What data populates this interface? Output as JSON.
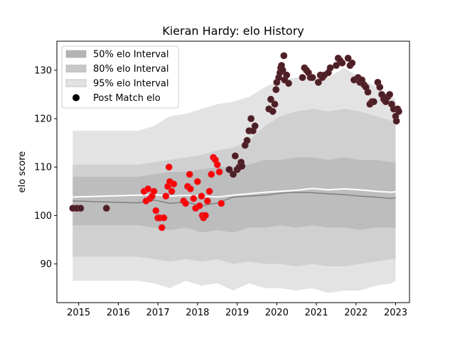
{
  "chart_data": {
    "type": "scatter",
    "title": "Kieran Hardy: elo History",
    "xlabel": "",
    "ylabel": "elo score",
    "xlim": [
      2014.45,
      2023.35
    ],
    "ylim": [
      82,
      136
    ],
    "x_ticks": [
      2015,
      2016,
      2017,
      2018,
      2019,
      2020,
      2021,
      2022,
      2023
    ],
    "x_tick_labels": [
      "2015",
      "2016",
      "2017",
      "2018",
      "2019",
      "2020",
      "2021",
      "2022",
      "2023"
    ],
    "y_ticks": [
      90,
      100,
      110,
      120,
      130
    ],
    "y_tick_labels": [
      "90",
      "100",
      "110",
      "120",
      "130"
    ],
    "grid": false,
    "legend_position": "top-left",
    "legend": [
      {
        "label": "50% elo Interval",
        "kind": "patch",
        "color": "#b4b4b4"
      },
      {
        "label": "80% elo Interval",
        "kind": "patch",
        "color": "#c8c8c8"
      },
      {
        "label": "95% elo Interval",
        "kind": "patch",
        "color": "#e2e2e2"
      },
      {
        "label": "Post Match elo",
        "kind": "marker",
        "color": "#000000"
      }
    ],
    "colors": {
      "band95": "#e3e3e3",
      "band80": "#d0d0d0",
      "band50": "#bdbdbd",
      "median_line": "#808080",
      "mean_line": "#ffffff",
      "dark_point": "#4a2026",
      "red_point": "#ff0000",
      "dark_point_edge": "#6b2a33",
      "red_point_edge": "#d23a4a"
    },
    "bands": {
      "x": [
        2014.85,
        2016.5,
        2016.9,
        2017.3,
        2017.7,
        2018.1,
        2018.5,
        2018.9,
        2019.3,
        2019.7,
        2020.1,
        2020.5,
        2020.9,
        2021.3,
        2021.7,
        2022.1,
        2022.5,
        2022.9,
        2023.0
      ],
      "upper95": [
        117.5,
        117.5,
        118.5,
        120.5,
        121.0,
        122.0,
        123.0,
        123.5,
        124.5,
        126.5,
        128.0,
        128.5,
        129.0,
        128.5,
        130.5,
        128.5,
        126.5,
        124.5,
        124.0
      ],
      "lower95": [
        86.5,
        86.5,
        86.0,
        85.0,
        86.5,
        85.5,
        86.0,
        84.5,
        86.0,
        85.0,
        85.0,
        84.5,
        85.0,
        84.0,
        84.5,
        84.5,
        85.5,
        86.0,
        86.5
      ],
      "upper80": [
        110.5,
        110.5,
        111.0,
        111.5,
        112.0,
        112.5,
        113.5,
        114.0,
        115.5,
        118.5,
        120.5,
        121.5,
        122.0,
        121.5,
        122.0,
        121.5,
        120.5,
        119.5,
        119.0
      ],
      "lower80": [
        91.5,
        91.5,
        91.0,
        90.5,
        91.0,
        90.5,
        91.0,
        90.0,
        90.5,
        90.0,
        90.0,
        89.5,
        90.0,
        89.5,
        89.5,
        90.0,
        90.5,
        91.0,
        91.0
      ],
      "upper50": [
        108.0,
        108.0,
        108.5,
        109.0,
        109.0,
        109.5,
        110.0,
        110.0,
        110.5,
        111.5,
        111.5,
        112.0,
        112.0,
        111.5,
        112.0,
        111.5,
        111.5,
        111.0,
        111.0
      ],
      "lower50": [
        98.0,
        98.0,
        97.5,
        97.0,
        97.5,
        96.5,
        97.0,
        96.5,
        97.5,
        97.5,
        98.0,
        97.5,
        98.0,
        97.5,
        97.5,
        97.0,
        97.5,
        97.5,
        97.5
      ],
      "median": [
        103.0,
        102.6,
        103.2,
        102.5,
        102.8,
        102.0,
        102.6,
        103.8,
        104.0,
        104.2,
        104.6,
        104.8,
        104.7,
        104.5,
        104.3,
        104.0,
        103.8,
        103.5,
        103.7
      ],
      "mean": [
        103.8,
        104.2,
        104.3,
        104.0,
        104.2,
        104.0,
        103.8,
        104.2,
        104.5,
        104.8,
        105.0,
        105.2,
        105.6,
        105.3,
        105.5,
        105.3,
        105.0,
        104.8,
        104.9
      ]
    },
    "series": [
      {
        "name": "Post Match elo",
        "dark_points": [
          [
            2014.85,
            101.5
          ],
          [
            2014.95,
            101.5
          ],
          [
            2015.05,
            101.5
          ],
          [
            2015.7,
            101.5
          ],
          [
            2018.8,
            109.5
          ],
          [
            2018.9,
            108.5
          ],
          [
            2018.95,
            112.3
          ],
          [
            2019.0,
            109.5
          ],
          [
            2019.05,
            110.0
          ],
          [
            2019.1,
            111.0
          ],
          [
            2019.12,
            110.2
          ],
          [
            2019.2,
            114.5
          ],
          [
            2019.25,
            115.5
          ],
          [
            2019.3,
            117.5
          ],
          [
            2019.35,
            120.0
          ],
          [
            2019.4,
            117.5
          ],
          [
            2019.45,
            118.5
          ],
          [
            2019.8,
            122.0
          ],
          [
            2019.85,
            124.0
          ],
          [
            2019.9,
            121.5
          ],
          [
            2019.95,
            123.0
          ],
          [
            2019.98,
            126.0
          ],
          [
            2020.0,
            127.5
          ],
          [
            2020.05,
            128.5
          ],
          [
            2020.08,
            129.5
          ],
          [
            2020.1,
            130.5
          ],
          [
            2020.12,
            131.0
          ],
          [
            2020.15,
            130.0
          ],
          [
            2020.18,
            133.0
          ],
          [
            2020.2,
            128.0
          ],
          [
            2020.25,
            129.0
          ],
          [
            2020.3,
            127.3
          ],
          [
            2020.65,
            128.5
          ],
          [
            2020.7,
            130.5
          ],
          [
            2020.75,
            130.0
          ],
          [
            2020.8,
            129.5
          ],
          [
            2020.85,
            128.5
          ],
          [
            2020.9,
            128.5
          ],
          [
            2021.05,
            127.5
          ],
          [
            2021.1,
            129.0
          ],
          [
            2021.15,
            128.5
          ],
          [
            2021.2,
            129.0
          ],
          [
            2021.3,
            129.5
          ],
          [
            2021.35,
            130.5
          ],
          [
            2021.5,
            131.0
          ],
          [
            2021.55,
            132.5
          ],
          [
            2021.6,
            132.0
          ],
          [
            2021.65,
            131.5
          ],
          [
            2021.8,
            132.5
          ],
          [
            2021.85,
            131.0
          ],
          [
            2021.9,
            131.5
          ],
          [
            2021.95,
            128.0
          ],
          [
            2022.05,
            128.5
          ],
          [
            2022.1,
            127.5
          ],
          [
            2022.15,
            128.0
          ],
          [
            2022.2,
            127.0
          ],
          [
            2022.25,
            126.5
          ],
          [
            2022.3,
            125.5
          ],
          [
            2022.35,
            123.0
          ],
          [
            2022.4,
            123.5
          ],
          [
            2022.45,
            123.5
          ],
          [
            2022.55,
            127.5
          ],
          [
            2022.6,
            126.5
          ],
          [
            2022.65,
            125.0
          ],
          [
            2022.7,
            124.0
          ],
          [
            2022.75,
            123.5
          ],
          [
            2022.8,
            124.5
          ],
          [
            2022.85,
            125.0
          ],
          [
            2022.9,
            123.0
          ],
          [
            2022.95,
            122.0
          ],
          [
            2023.0,
            120.5
          ],
          [
            2023.02,
            119.5
          ],
          [
            2023.05,
            122.0
          ],
          [
            2023.08,
            121.5
          ]
        ],
        "red_points": [
          [
            2016.65,
            105.0
          ],
          [
            2016.7,
            103.0
          ],
          [
            2016.75,
            105.5
          ],
          [
            2016.8,
            103.5
          ],
          [
            2016.85,
            104.0
          ],
          [
            2016.9,
            105.0
          ],
          [
            2016.95,
            101.0
          ],
          [
            2017.0,
            99.5
          ],
          [
            2017.05,
            99.5
          ],
          [
            2017.1,
            97.5
          ],
          [
            2017.15,
            99.5
          ],
          [
            2017.2,
            104.0
          ],
          [
            2017.25,
            106.0
          ],
          [
            2017.28,
            110.0
          ],
          [
            2017.3,
            107.0
          ],
          [
            2017.35,
            105.0
          ],
          [
            2017.4,
            106.5
          ],
          [
            2017.65,
            103.0
          ],
          [
            2017.7,
            102.5
          ],
          [
            2017.75,
            106.0
          ],
          [
            2017.8,
            108.5
          ],
          [
            2017.82,
            105.5
          ],
          [
            2017.9,
            103.5
          ],
          [
            2017.95,
            101.5
          ],
          [
            2018.0,
            107.0
          ],
          [
            2018.05,
            102.0
          ],
          [
            2018.1,
            104.0
          ],
          [
            2018.12,
            100.0
          ],
          [
            2018.15,
            99.5
          ],
          [
            2018.2,
            100.0
          ],
          [
            2018.25,
            103.0
          ],
          [
            2018.3,
            105.0
          ],
          [
            2018.35,
            108.5
          ],
          [
            2018.4,
            112.0
          ],
          [
            2018.45,
            111.5
          ],
          [
            2018.5,
            110.5
          ],
          [
            2018.55,
            109.0
          ],
          [
            2018.6,
            102.5
          ]
        ]
      }
    ]
  }
}
